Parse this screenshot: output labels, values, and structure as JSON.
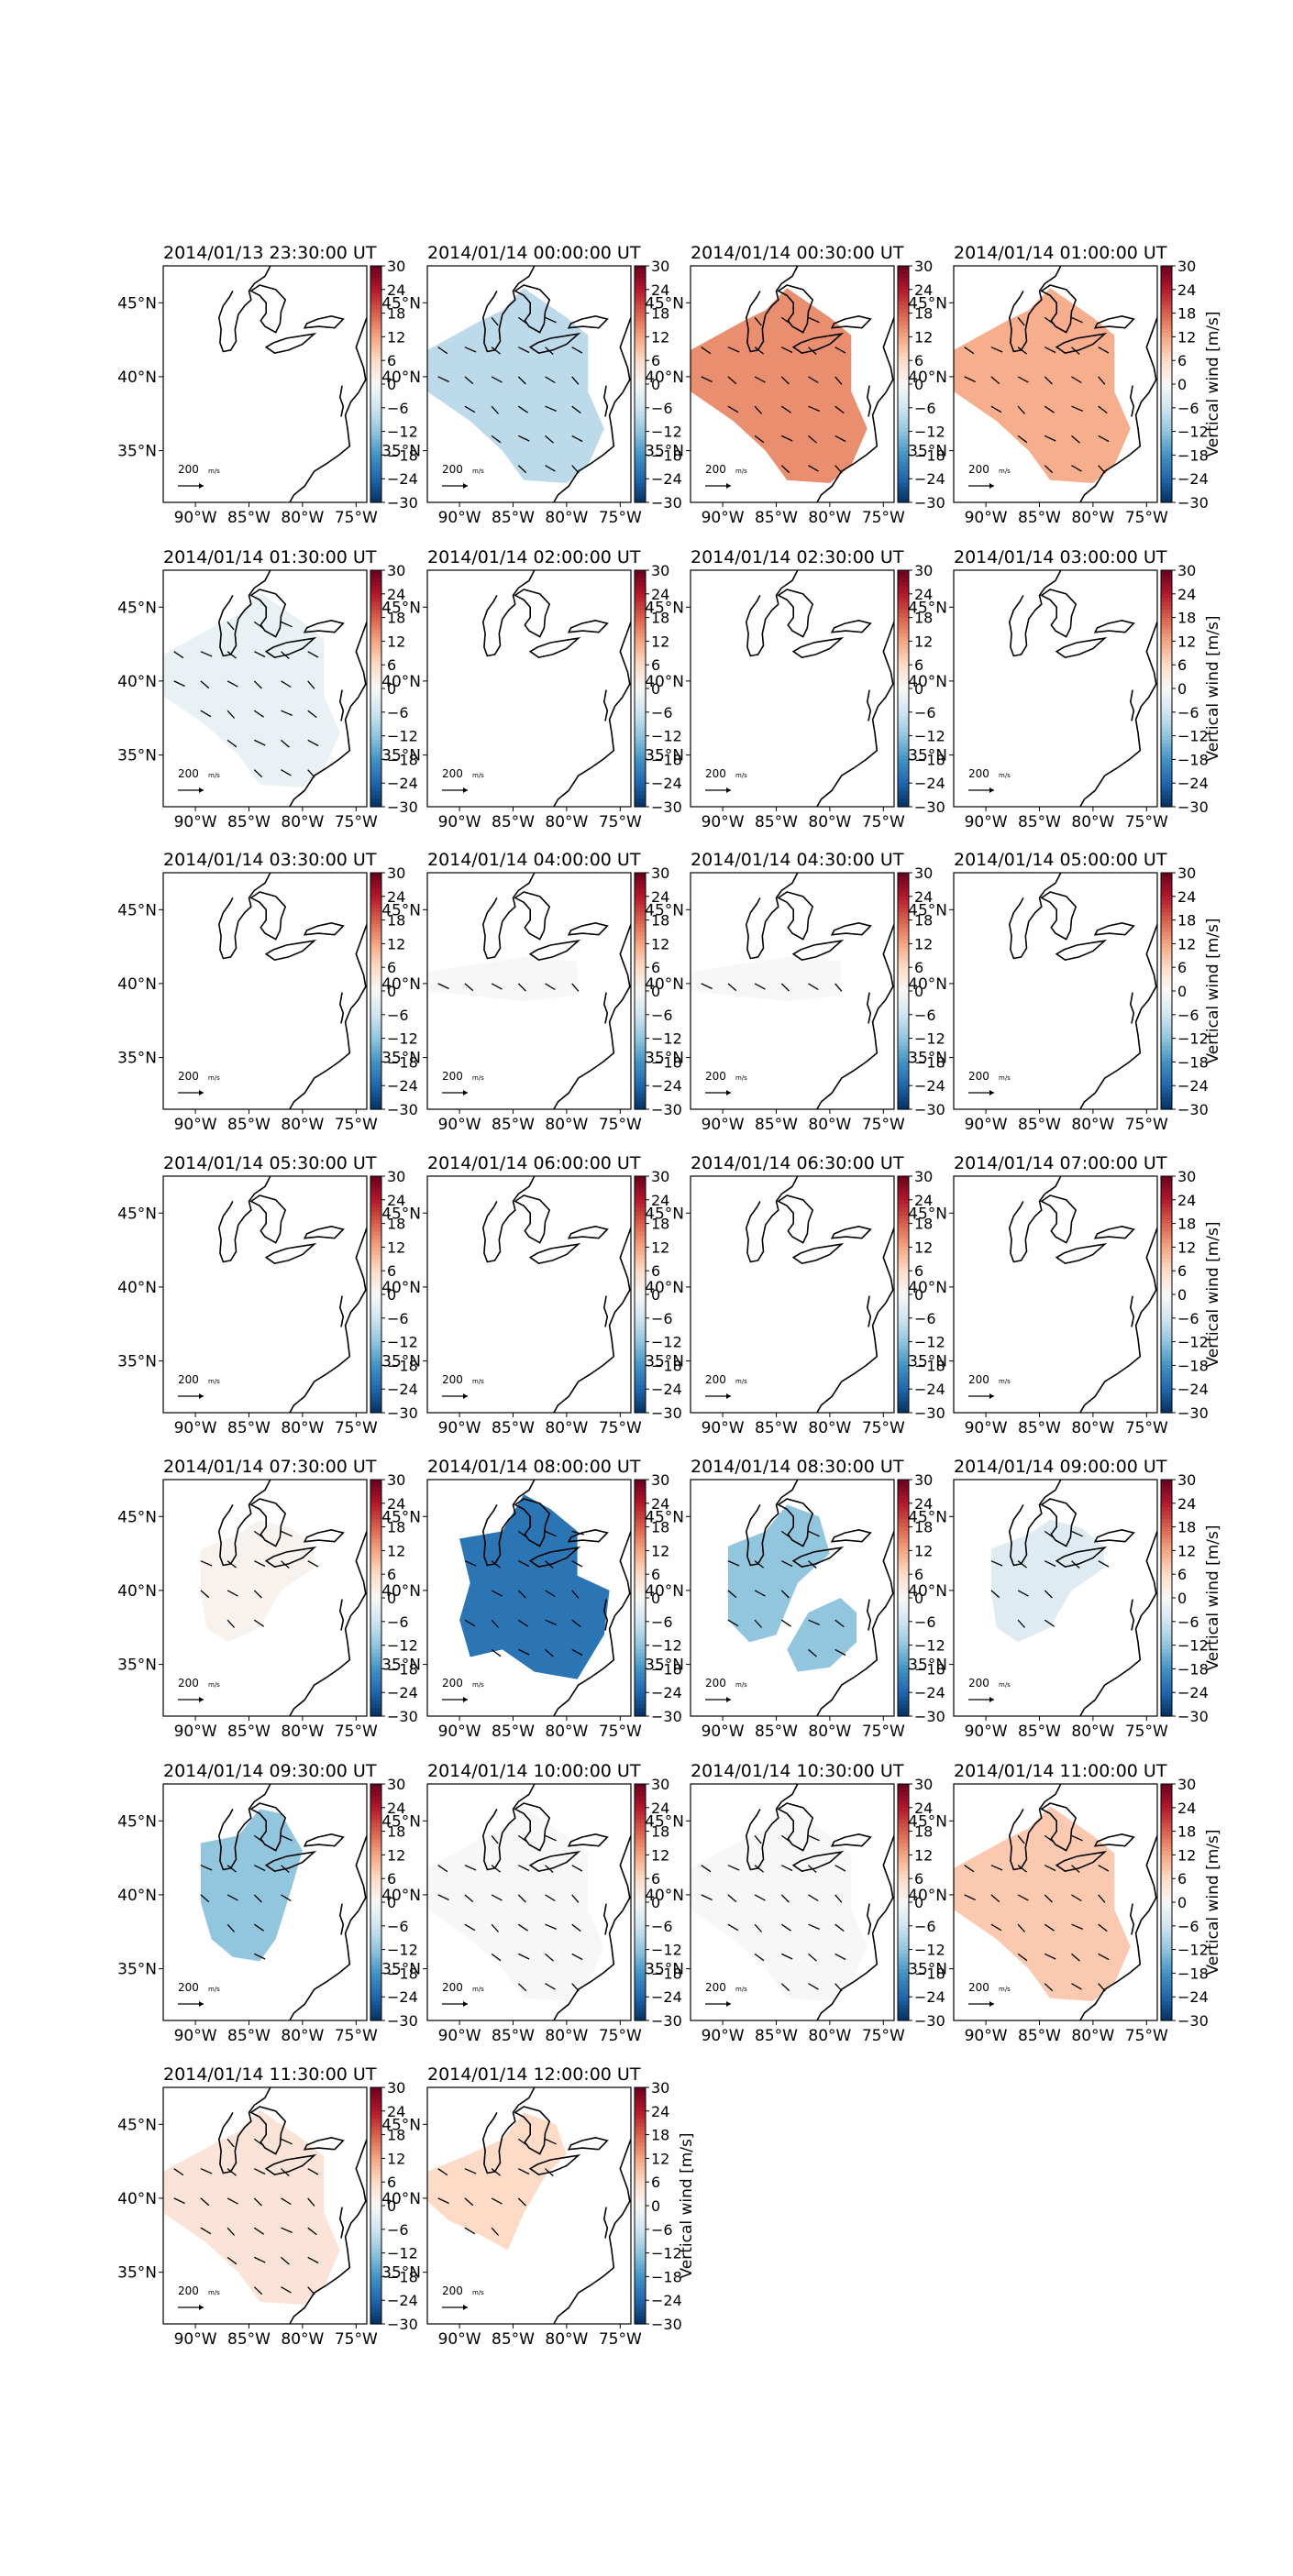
{
  "figure": {
    "colorbar_label": "Vertical wind [m/s]",
    "colorbar_ticks": [
      30,
      24,
      18,
      12,
      6,
      0,
      -6,
      -12,
      -18,
      -24,
      -30
    ],
    "colorbar_tick_labels": [
      "30",
      "24",
      "18",
      "12",
      "6",
      "0",
      "−6",
      "−12",
      "−18",
      "−24",
      "−30"
    ],
    "lon_tick_labels": [
      "90°W",
      "85°W",
      "80°W",
      "75°W"
    ],
    "lat_tick_labels": [
      "45°N",
      "40°N",
      "35°N"
    ],
    "scale_label": "200",
    "scale_unit": "m/s",
    "colormap": "RdBu_r",
    "colors": {
      "max": "#67001f",
      "zero": "#f7f7f7",
      "min": "#053061"
    }
  },
  "chart_data": [
    {
      "type": "heatmap",
      "title": "2014/01/13 23:30:00 UT",
      "value": null,
      "region": "none"
    },
    {
      "type": "heatmap",
      "title": "2014/01/14 00:00:00 UT",
      "value": -8,
      "region": "full"
    },
    {
      "type": "heatmap",
      "title": "2014/01/14 00:30:00 UT",
      "value": 14,
      "region": "full"
    },
    {
      "type": "heatmap",
      "title": "2014/01/14 01:00:00 UT",
      "value": 11,
      "region": "full"
    },
    {
      "type": "heatmap",
      "title": "2014/01/14 01:30:00 UT",
      "value": -2,
      "region": "full"
    },
    {
      "type": "heatmap",
      "title": "2014/01/14 02:00:00 UT",
      "value": null,
      "region": "none"
    },
    {
      "type": "heatmap",
      "title": "2014/01/14 02:30:00 UT",
      "value": null,
      "region": "none"
    },
    {
      "type": "heatmap",
      "title": "2014/01/14 03:00:00 UT",
      "value": null,
      "region": "none"
    },
    {
      "type": "heatmap",
      "title": "2014/01/14 03:30:00 UT",
      "value": null,
      "region": "none"
    },
    {
      "type": "heatmap",
      "title": "2014/01/14 04:00:00 UT",
      "value": 0,
      "region": "band"
    },
    {
      "type": "heatmap",
      "title": "2014/01/14 04:30:00 UT",
      "value": 0,
      "region": "band"
    },
    {
      "type": "heatmap",
      "title": "2014/01/14 05:00:00 UT",
      "value": null,
      "region": "none"
    },
    {
      "type": "heatmap",
      "title": "2014/01/14 05:30:00 UT",
      "value": null,
      "region": "none"
    },
    {
      "type": "heatmap",
      "title": "2014/01/14 06:00:00 UT",
      "value": null,
      "region": "none"
    },
    {
      "type": "heatmap",
      "title": "2014/01/14 06:30:00 UT",
      "value": null,
      "region": "none"
    },
    {
      "type": "heatmap",
      "title": "2014/01/14 07:00:00 UT",
      "value": null,
      "region": "none"
    },
    {
      "type": "heatmap",
      "title": "2014/01/14 07:30:00 UT",
      "value": 1,
      "region": "mid"
    },
    {
      "type": "heatmap",
      "title": "2014/01/14 08:00:00 UT",
      "value": -22,
      "region": "big"
    },
    {
      "type": "heatmap",
      "title": "2014/01/14 08:30:00 UT",
      "value": -12,
      "region": "split"
    },
    {
      "type": "heatmap",
      "title": "2014/01/14 09:00:00 UT",
      "value": -4,
      "region": "mid"
    },
    {
      "type": "heatmap",
      "title": "2014/01/14 09:30:00 UT",
      "value": -12,
      "region": "center"
    },
    {
      "type": "heatmap",
      "title": "2014/01/14 10:00:00 UT",
      "value": 0,
      "region": "full"
    },
    {
      "type": "heatmap",
      "title": "2014/01/14 10:30:00 UT",
      "value": 0,
      "region": "full"
    },
    {
      "type": "heatmap",
      "title": "2014/01/14 11:00:00 UT",
      "value": 8,
      "region": "full"
    },
    {
      "type": "heatmap",
      "title": "2014/01/14 11:30:00 UT",
      "value": 4,
      "region": "full"
    },
    {
      "type": "heatmap",
      "title": "2014/01/14 12:00:00 UT",
      "value": 6,
      "region": "west"
    }
  ]
}
